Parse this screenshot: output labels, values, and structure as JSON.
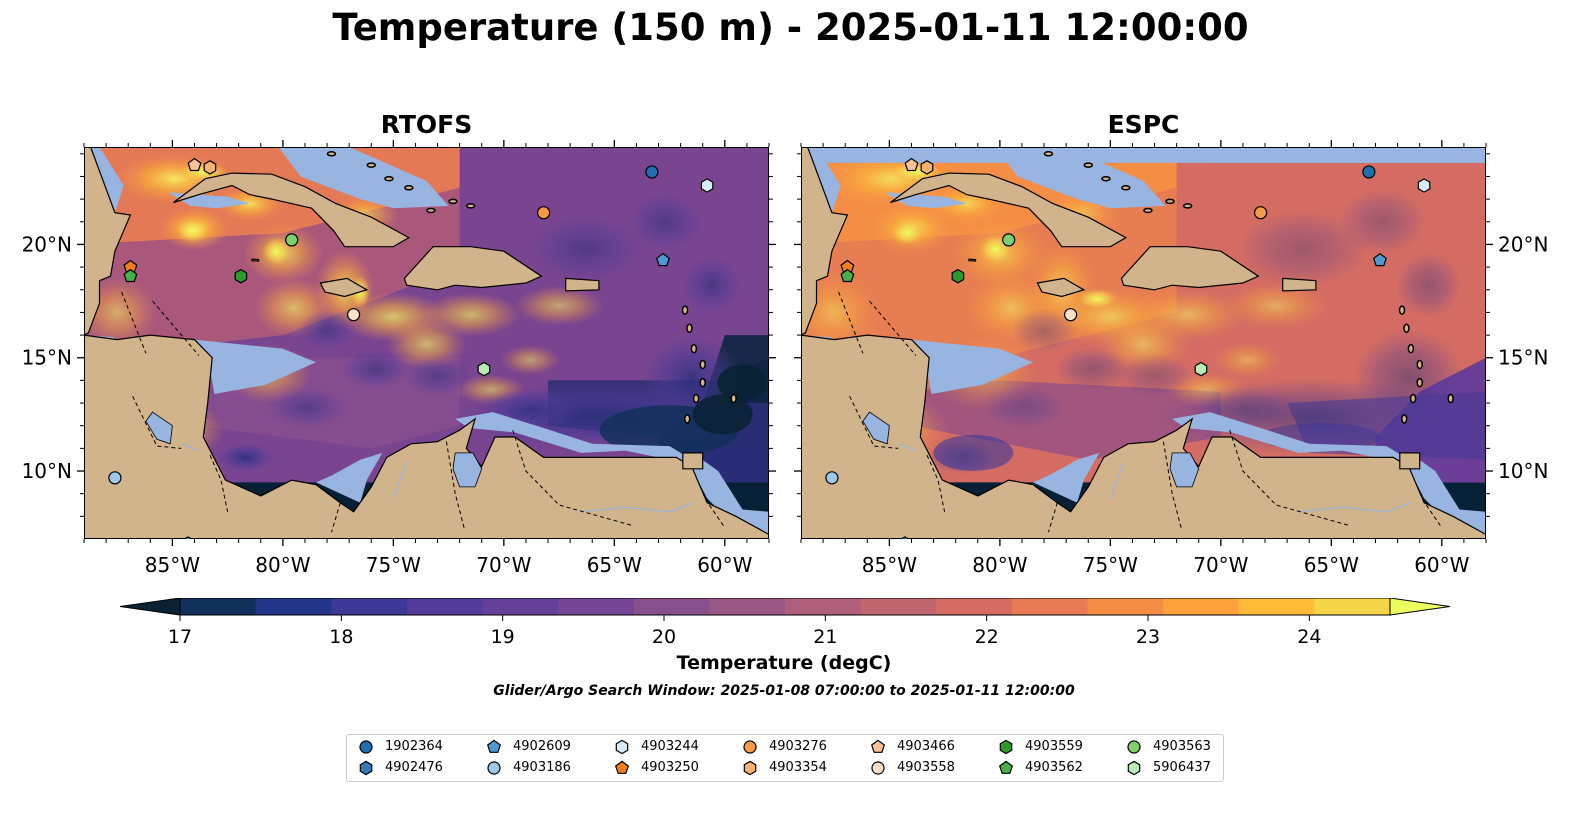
{
  "title": "Temperature (150 m) - 2025-01-11 12:00:00",
  "panels": [
    {
      "name": "RTOFS"
    },
    {
      "name": "ESPC"
    }
  ],
  "map": {
    "lon_range": [
      -89,
      -58
    ],
    "lat_range": [
      7,
      24.3
    ],
    "lon_ticks": [
      "85°W",
      "80°W",
      "75°W",
      "70°W",
      "65°W",
      "60°W"
    ],
    "lon_tick_values": [
      -85,
      -80,
      -75,
      -70,
      -65,
      -60
    ],
    "lat_ticks": [
      "20°N",
      "15°N",
      "10°N"
    ],
    "lat_tick_values": [
      20,
      15,
      10
    ],
    "colors": {
      "land": "#d2b48c",
      "shallow": "#98b4e0",
      "cold": "#062036"
    }
  },
  "colorbar": {
    "label": "Temperature (degC)",
    "ticks": [
      "17",
      "18",
      "19",
      "20",
      "21",
      "22",
      "23",
      "24"
    ],
    "tick_values": [
      17,
      18,
      19,
      20,
      21,
      22,
      23,
      24
    ],
    "range": [
      17,
      24.5
    ],
    "step": 0.5,
    "extend": "both",
    "colors": [
      "#0a2234",
      "#10305a",
      "#22358a",
      "#3c3898",
      "#533b9c",
      "#653e98",
      "#754693",
      "#87508d",
      "#9a5886",
      "#b05f7b",
      "#c1656f",
      "#d46c63",
      "#e87a55",
      "#f58e45",
      "#fba33a",
      "#fdbb38",
      "#f5d64b",
      "#eefd5e"
    ]
  },
  "search_window": "Glider/Argo Search Window: 2025-01-08 07:00:00 to 2025-01-11 12:00:00",
  "floats": [
    {
      "id": "1902364",
      "marker": "circle",
      "color": "#1f6fb0",
      "lon": -63.3,
      "lat": 23.2
    },
    {
      "id": "4902476",
      "marker": "hexagon",
      "color": "#3478b8",
      "lon": -84.3,
      "lat": 6.8
    },
    {
      "id": "4902609",
      "marker": "pentagon",
      "color": "#4e9ad4",
      "lon": -62.8,
      "lat": 19.3
    },
    {
      "id": "4903186",
      "marker": "circle",
      "color": "#9ccae8",
      "lon": -87.6,
      "lat": 9.7
    },
    {
      "id": "4903244",
      "marker": "hexagon",
      "color": "#d8ebf8",
      "lon": -60.8,
      "lat": 22.6
    },
    {
      "id": "4903250",
      "marker": "pentagon",
      "color": "#f07e1a",
      "lon": -86.9,
      "lat": 19.0
    },
    {
      "id": "4903276",
      "marker": "circle",
      "color": "#f69a44",
      "lon": -68.2,
      "lat": 21.4
    },
    {
      "id": "4903354",
      "marker": "hexagon",
      "color": "#fab26e",
      "lon": -83.3,
      "lat": 23.4
    },
    {
      "id": "4903466",
      "marker": "pentagon",
      "color": "#fcc294",
      "lon": -84.0,
      "lat": 23.5
    },
    {
      "id": "4903558",
      "marker": "circle",
      "color": "#fde2c8",
      "lon": -76.8,
      "lat": 16.9
    },
    {
      "id": "4903559",
      "marker": "hexagon",
      "color": "#2e9a2e",
      "lon": -81.9,
      "lat": 18.6
    },
    {
      "id": "4903562",
      "marker": "pentagon",
      "color": "#48b048",
      "lon": -86.9,
      "lat": 18.6
    },
    {
      "id": "4903563",
      "marker": "circle",
      "color": "#7fcf6f",
      "lon": -79.6,
      "lat": 20.2
    },
    {
      "id": "5906437",
      "marker": "hexagon",
      "color": "#b9ecb3",
      "lon": -70.9,
      "lat": 14.5
    }
  ]
}
